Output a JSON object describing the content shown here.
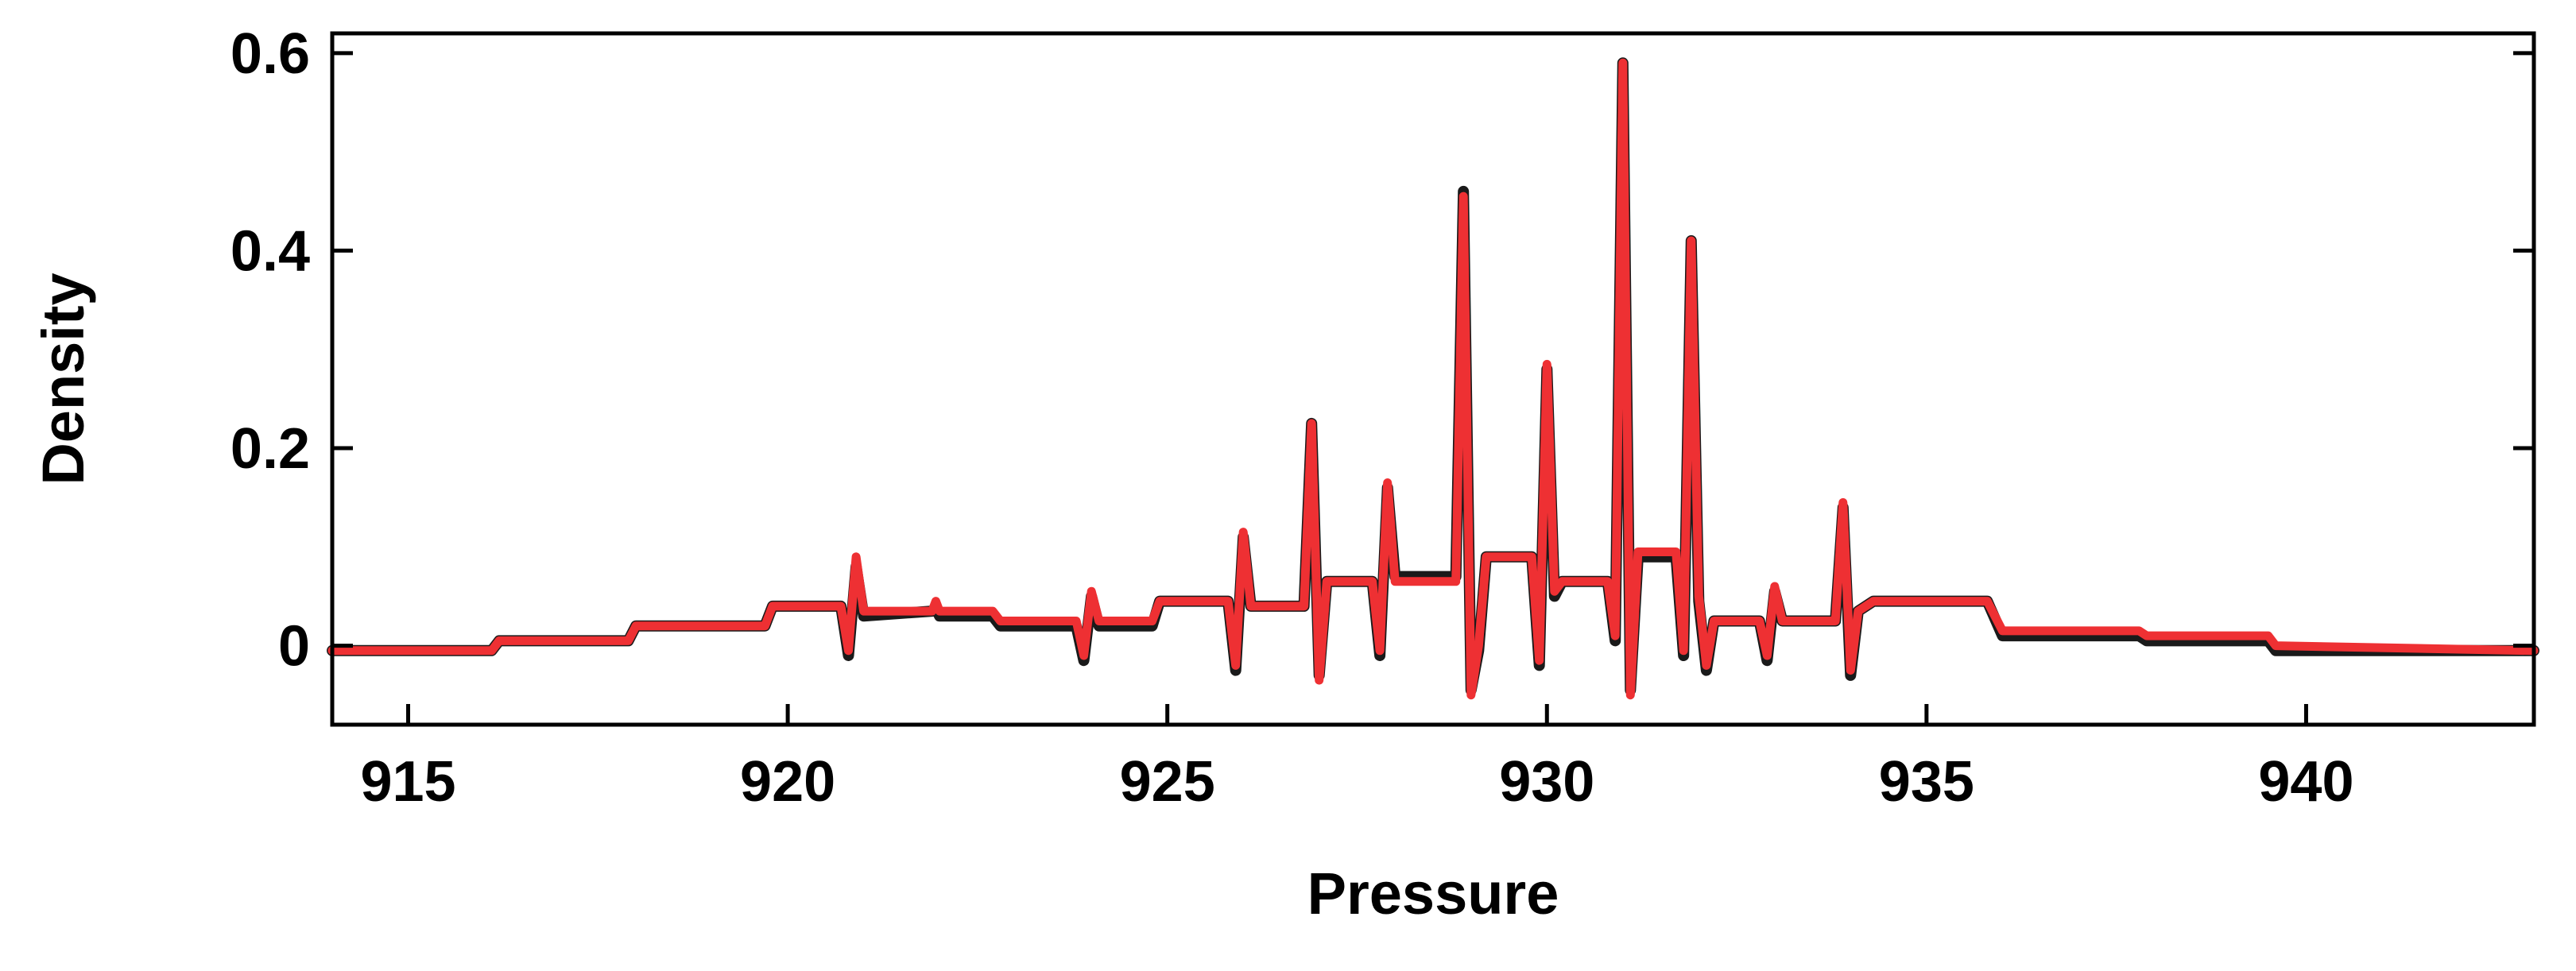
{
  "chart_data": {
    "type": "line",
    "title": "",
    "xlabel": "Pressure",
    "ylabel": "Density",
    "xlim": [
      914,
      943
    ],
    "ylim": [
      -0.08,
      0.62
    ],
    "x_ticks": [
      915,
      920,
      925,
      930,
      935,
      940
    ],
    "x_tick_labels": [
      "915",
      "920",
      "925",
      "930",
      "935",
      "940"
    ],
    "y_ticks": [
      0,
      0.2,
      0.4,
      0.6
    ],
    "y_tick_labels": [
      "0",
      "0.2",
      "0.4",
      "0.6"
    ],
    "grid": false,
    "legend": "none",
    "colors": {
      "dark_series": "#1a1a1a",
      "red_series": "#ee3033",
      "axis": "#000000"
    },
    "series": [
      {
        "color": "#1a1a1a",
        "points": [
          [
            914.0,
            -0.005
          ],
          [
            916.1,
            -0.005
          ],
          [
            916.2,
            0.005
          ],
          [
            917.9,
            0.005
          ],
          [
            918.0,
            0.02
          ],
          [
            919.7,
            0.02
          ],
          [
            919.8,
            0.04
          ],
          [
            920.7,
            0.04
          ],
          [
            920.8,
            -0.01
          ],
          [
            920.9,
            0.08
          ],
          [
            921.0,
            0.03
          ],
          [
            921.9,
            0.035
          ],
          [
            921.95,
            0.038
          ],
          [
            922.0,
            0.03
          ],
          [
            922.7,
            0.03
          ],
          [
            922.8,
            0.02
          ],
          [
            923.8,
            0.02
          ],
          [
            923.9,
            -0.015
          ],
          [
            924.0,
            0.05
          ],
          [
            924.1,
            0.02
          ],
          [
            924.8,
            0.02
          ],
          [
            924.9,
            0.045
          ],
          [
            925.8,
            0.045
          ],
          [
            925.9,
            -0.025
          ],
          [
            926.0,
            0.11
          ],
          [
            926.1,
            0.04
          ],
          [
            926.8,
            0.04
          ],
          [
            926.9,
            0.225
          ],
          [
            927.0,
            -0.03
          ],
          [
            927.1,
            0.065
          ],
          [
            927.7,
            0.065
          ],
          [
            927.8,
            -0.01
          ],
          [
            927.9,
            0.16
          ],
          [
            928.0,
            0.07
          ],
          [
            928.8,
            0.07
          ],
          [
            928.9,
            0.46
          ],
          [
            929.0,
            -0.045
          ],
          [
            929.1,
            -0.005
          ],
          [
            929.2,
            0.09
          ],
          [
            929.8,
            0.09
          ],
          [
            929.9,
            -0.02
          ],
          [
            930.0,
            0.28
          ],
          [
            930.1,
            0.05
          ],
          [
            930.2,
            0.065
          ],
          [
            930.8,
            0.065
          ],
          [
            930.9,
            0.005
          ],
          [
            931.0,
            0.59
          ],
          [
            931.1,
            -0.045
          ],
          [
            931.2,
            0.09
          ],
          [
            931.7,
            0.09
          ],
          [
            931.8,
            -0.01
          ],
          [
            931.9,
            0.41
          ],
          [
            932.0,
            0.045
          ],
          [
            932.1,
            -0.025
          ],
          [
            932.2,
            0.025
          ],
          [
            932.8,
            0.025
          ],
          [
            932.9,
            -0.015
          ],
          [
            933.0,
            0.055
          ],
          [
            933.1,
            0.025
          ],
          [
            933.8,
            0.025
          ],
          [
            933.9,
            0.14
          ],
          [
            934.0,
            -0.03
          ],
          [
            934.1,
            0.035
          ],
          [
            934.3,
            0.045
          ],
          [
            935.8,
            0.045
          ],
          [
            936.0,
            0.01
          ],
          [
            937.8,
            0.01
          ],
          [
            937.9,
            0.005
          ],
          [
            939.5,
            0.005
          ],
          [
            939.6,
            -0.005
          ],
          [
            943.0,
            -0.005
          ]
        ]
      },
      {
        "color": "#ee3033",
        "points": [
          [
            914.0,
            -0.005
          ],
          [
            916.1,
            -0.005
          ],
          [
            916.2,
            0.005
          ],
          [
            917.9,
            0.005
          ],
          [
            918.0,
            0.02
          ],
          [
            919.7,
            0.02
          ],
          [
            919.8,
            0.04
          ],
          [
            920.7,
            0.04
          ],
          [
            920.8,
            -0.005
          ],
          [
            920.9,
            0.09
          ],
          [
            921.0,
            0.035
          ],
          [
            921.9,
            0.035
          ],
          [
            921.95,
            0.045
          ],
          [
            922.0,
            0.035
          ],
          [
            922.7,
            0.035
          ],
          [
            922.8,
            0.025
          ],
          [
            923.8,
            0.025
          ],
          [
            923.9,
            -0.01
          ],
          [
            924.0,
            0.055
          ],
          [
            924.1,
            0.025
          ],
          [
            924.8,
            0.025
          ],
          [
            924.9,
            0.045
          ],
          [
            925.8,
            0.045
          ],
          [
            925.9,
            -0.02
          ],
          [
            926.0,
            0.115
          ],
          [
            926.1,
            0.04
          ],
          [
            926.8,
            0.04
          ],
          [
            926.9,
            0.225
          ],
          [
            927.0,
            -0.035
          ],
          [
            927.1,
            0.065
          ],
          [
            927.7,
            0.065
          ],
          [
            927.8,
            -0.005
          ],
          [
            927.9,
            0.165
          ],
          [
            928.0,
            0.065
          ],
          [
            928.8,
            0.065
          ],
          [
            928.9,
            0.455
          ],
          [
            929.0,
            -0.05
          ],
          [
            929.1,
            0.0
          ],
          [
            929.2,
            0.09
          ],
          [
            929.8,
            0.09
          ],
          [
            929.9,
            -0.015
          ],
          [
            930.0,
            0.285
          ],
          [
            930.1,
            0.055
          ],
          [
            930.2,
            0.065
          ],
          [
            930.8,
            0.065
          ],
          [
            930.9,
            0.01
          ],
          [
            931.0,
            0.59
          ],
          [
            931.1,
            -0.05
          ],
          [
            931.2,
            0.095
          ],
          [
            931.7,
            0.095
          ],
          [
            931.8,
            -0.005
          ],
          [
            931.9,
            0.41
          ],
          [
            932.0,
            0.05
          ],
          [
            932.1,
            -0.02
          ],
          [
            932.2,
            0.025
          ],
          [
            932.8,
            0.025
          ],
          [
            932.9,
            -0.01
          ],
          [
            933.0,
            0.06
          ],
          [
            933.1,
            0.025
          ],
          [
            933.8,
            0.025
          ],
          [
            933.9,
            0.145
          ],
          [
            934.0,
            -0.025
          ],
          [
            934.1,
            0.035
          ],
          [
            934.3,
            0.045
          ],
          [
            935.8,
            0.045
          ],
          [
            936.0,
            0.015
          ],
          [
            937.8,
            0.015
          ],
          [
            937.9,
            0.01
          ],
          [
            939.5,
            0.01
          ],
          [
            939.6,
            0.0
          ],
          [
            943.0,
            -0.005
          ]
        ]
      }
    ]
  }
}
